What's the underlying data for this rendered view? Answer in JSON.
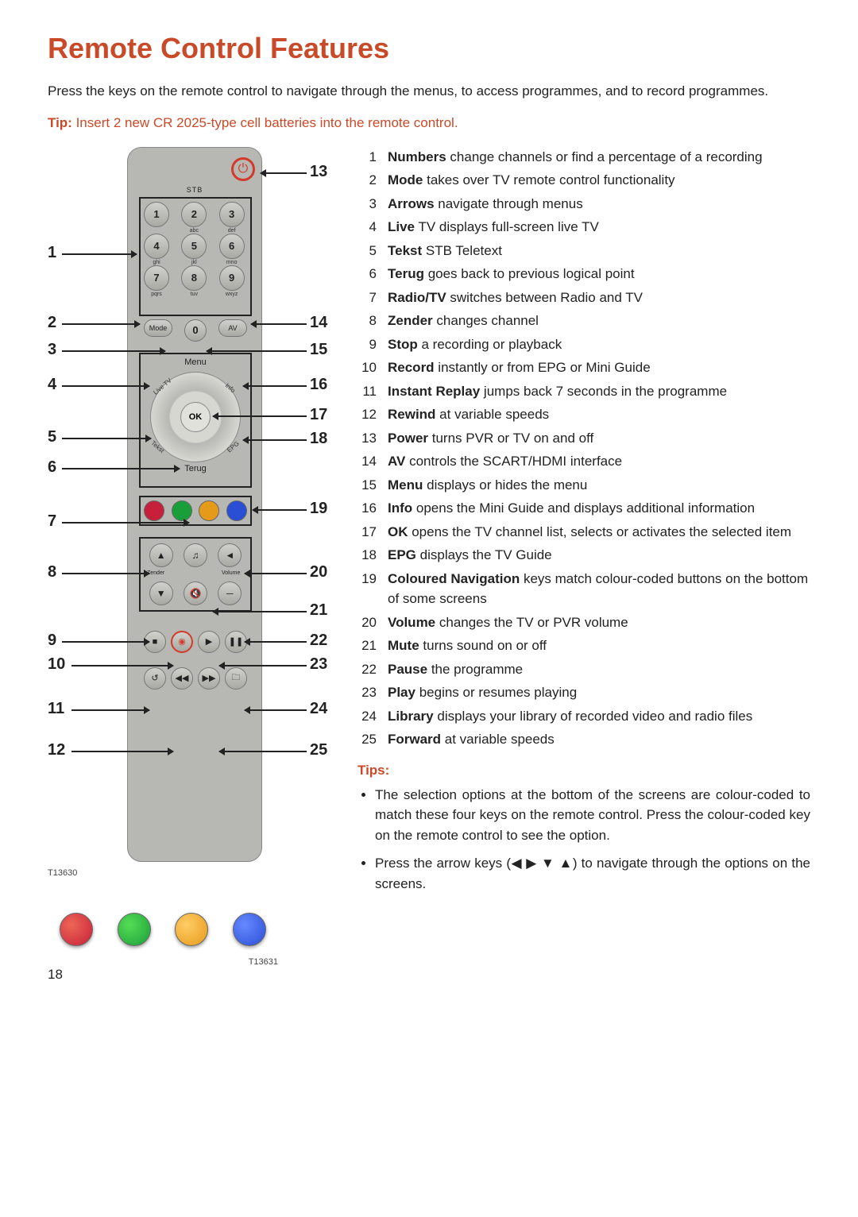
{
  "colors": {
    "accent": "#c94a28",
    "text": "#222222",
    "remote_body": "#b7b8b3",
    "btn_red": "#c7203a",
    "btn_green": "#1a9e3a",
    "btn_orange": "#e69a1a",
    "btn_blue": "#2a4fd4"
  },
  "title": "Remote Control Features",
  "intro": "Press the keys on the remote control to navigate through the menus, to access programmes, and to record programmes.",
  "tip_label": "Tip:",
  "tip_text": " Insert 2 new CR 2025-type cell batteries into the remote control.",
  "remote": {
    "stb": "STB",
    "menu": "Menu",
    "terug": "Terug",
    "ok": "OK",
    "live": "Live TV",
    "info": "Info",
    "tekst": "Tekst",
    "epg": "EPG",
    "mode": "Mode",
    "av": "AV",
    "zender": "Zender",
    "volume": "Volume",
    "numbers": [
      "1",
      "2",
      "3",
      "4",
      "5",
      "6",
      "7",
      "8",
      "9",
      "0"
    ],
    "sublabels": [
      "",
      "abc",
      "def",
      "ghi",
      "jkl",
      "mno",
      "pqrs",
      "tuv",
      "wxyz",
      ""
    ],
    "code_main": "T13630",
    "code_strip": "T13631"
  },
  "callouts_left": [
    "1",
    "2",
    "3",
    "4",
    "5",
    "6",
    "7",
    "8",
    "9",
    "10",
    "11",
    "12"
  ],
  "callouts_right": [
    "13",
    "14",
    "15",
    "16",
    "17",
    "18",
    "19",
    "20",
    "21",
    "22",
    "23",
    "24",
    "25"
  ],
  "features": [
    {
      "n": "1",
      "b": "Numbers",
      "t": " change channels or find a percentage of a recording"
    },
    {
      "n": "2",
      "b": "Mode",
      "t": " takes over TV remote control functionality"
    },
    {
      "n": "3",
      "b": "Arrows",
      "t": " navigate through menus"
    },
    {
      "n": "4",
      "b": "Live",
      "t": " TV displays full-screen live TV"
    },
    {
      "n": "5",
      "b": "Tekst",
      "t": " STB Teletext"
    },
    {
      "n": "6",
      "b": "Terug",
      "t": " goes back to previous logical point"
    },
    {
      "n": "7",
      "b": "Radio/TV",
      "t": " switches between Radio and TV"
    },
    {
      "n": "8",
      "b": "Zender",
      "t": " changes channel"
    },
    {
      "n": "9",
      "b": "Stop",
      "t": " a recording or playback"
    },
    {
      "n": "10",
      "b": "Record",
      "t": " instantly or from EPG or Mini Guide"
    },
    {
      "n": "11",
      "b": "Instant Replay",
      "t": " jumps back 7 seconds in the programme"
    },
    {
      "n": "12",
      "b": "Rewind",
      "t": " at variable speeds"
    },
    {
      "n": "13",
      "b": "Power",
      "t": " turns PVR or TV on and off"
    },
    {
      "n": "14",
      "b": "AV",
      "t": " controls the SCART/HDMI interface"
    },
    {
      "n": "15",
      "b": "Menu",
      "t": " displays or hides the menu"
    },
    {
      "n": "16",
      "b": "Info",
      "t": " opens the Mini Guide and displays additional information"
    },
    {
      "n": "17",
      "b": "OK",
      "t": " opens the TV channel list, selects or activates the selected item"
    },
    {
      "n": "18",
      "b": "EPG",
      "t": " displays the TV Guide"
    },
    {
      "n": "19",
      "b": "Coloured Navigation",
      "t": " keys match colour-coded buttons on the bottom of some screens"
    },
    {
      "n": "20",
      "b": "Volume",
      "t": " changes the TV or PVR volume"
    },
    {
      "n": "21",
      "b": "Mute",
      "t": " turns sound on or off"
    },
    {
      "n": "22",
      "b": "Pause",
      "t": " the programme"
    },
    {
      "n": "23",
      "b": "Play",
      "t": " begins or resumes playing"
    },
    {
      "n": "24",
      "b": "Library",
      "t": " displays your library of recorded video and radio files"
    },
    {
      "n": "25",
      "b": "Forward",
      "t": " at variable speeds"
    }
  ],
  "tips_heading": "Tips:",
  "tips": [
    "The selection options at the bottom of the screens are colour-coded to match these four keys on the remote control. Press the colour-coded key on the remote control to see the option.",
    "Press the arrow keys (◀ ▶ ▼ ▲) to navigate through the options on the screens."
  ],
  "page_number": "18"
}
